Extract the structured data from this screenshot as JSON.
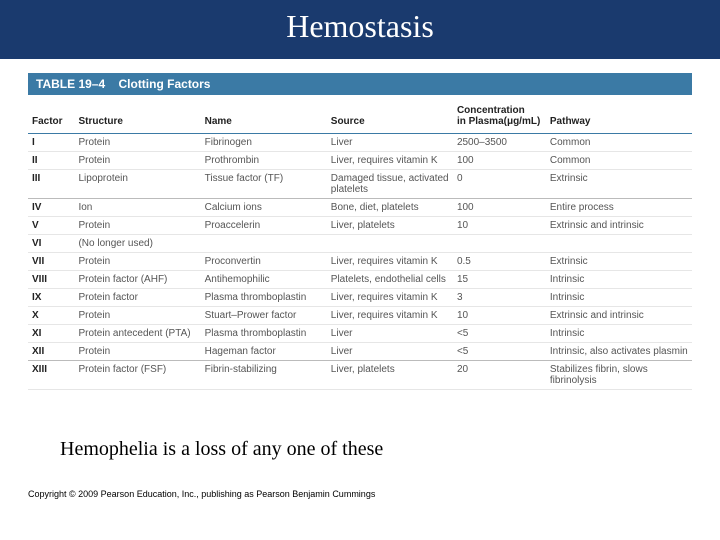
{
  "title": "Hemostasis",
  "table": {
    "banner_label": "TABLE 19–4",
    "banner_title": "Clotting Factors",
    "banner_bg": "#3b7aa5",
    "columns": [
      "Factor",
      "Structure",
      "Name",
      "Source",
      "Concentration in Plasma(μg/mL)",
      "Pathway"
    ],
    "rows": [
      {
        "sep": false,
        "cells": [
          "I",
          "Protein",
          "Fibrinogen",
          "Liver",
          "2500–3500",
          "Common"
        ]
      },
      {
        "sep": false,
        "cells": [
          "II",
          "Protein",
          "Prothrombin",
          "Liver, requires vitamin K",
          "100",
          "Common"
        ]
      },
      {
        "sep": true,
        "cells": [
          "III",
          "Lipoprotein",
          "Tissue factor (TF)",
          "Damaged tissue, activated platelets",
          "0",
          "Extrinsic"
        ]
      },
      {
        "sep": false,
        "cells": [
          "IV",
          "Ion",
          "Calcium ions",
          "Bone, diet, platelets",
          "100",
          "Entire process"
        ]
      },
      {
        "sep": false,
        "cells": [
          "V",
          "Protein",
          "Proaccelerin",
          "Liver, platelets",
          "10",
          "Extrinsic and intrinsic"
        ]
      },
      {
        "sep": false,
        "cells": [
          "VI",
          "(No longer used)",
          "",
          "",
          "",
          ""
        ]
      },
      {
        "sep": false,
        "cells": [
          "VII",
          "Protein",
          "Proconvertin",
          "Liver, requires vitamin K",
          "0.5",
          "Extrinsic"
        ]
      },
      {
        "sep": false,
        "cells": [
          "VIII",
          "Protein factor (AHF)",
          "Antihemophilic",
          "Platelets, endothelial cells",
          "15",
          "Intrinsic"
        ]
      },
      {
        "sep": false,
        "cells": [
          "IX",
          "Protein factor",
          "Plasma thromboplastin",
          "Liver, requires vitamin K",
          "3",
          "Intrinsic"
        ]
      },
      {
        "sep": false,
        "cells": [
          "X",
          "Protein",
          "Stuart–Prower factor",
          "Liver, requires vitamin K",
          "10",
          "Extrinsic and intrinsic"
        ]
      },
      {
        "sep": false,
        "cells": [
          "XI",
          "Protein antecedent (PTA)",
          "Plasma thromboplastin",
          "Liver",
          "<5",
          "Intrinsic"
        ]
      },
      {
        "sep": true,
        "cells": [
          "XII",
          "Protein",
          "Hageman factor",
          "Liver",
          "<5",
          "Intrinsic, also activates plasmin"
        ]
      },
      {
        "sep": false,
        "cells": [
          "XIII",
          "Protein factor (FSF)",
          "Fibrin-stabilizing",
          "Liver, platelets",
          "20",
          "Stabilizes fibrin, slows fibrinolysis"
        ]
      }
    ]
  },
  "note": "Hemophelia is a loss of any one of these",
  "copyright": "Copyright © 2009 Pearson Education, Inc., publishing as Pearson Benjamin Cummings"
}
